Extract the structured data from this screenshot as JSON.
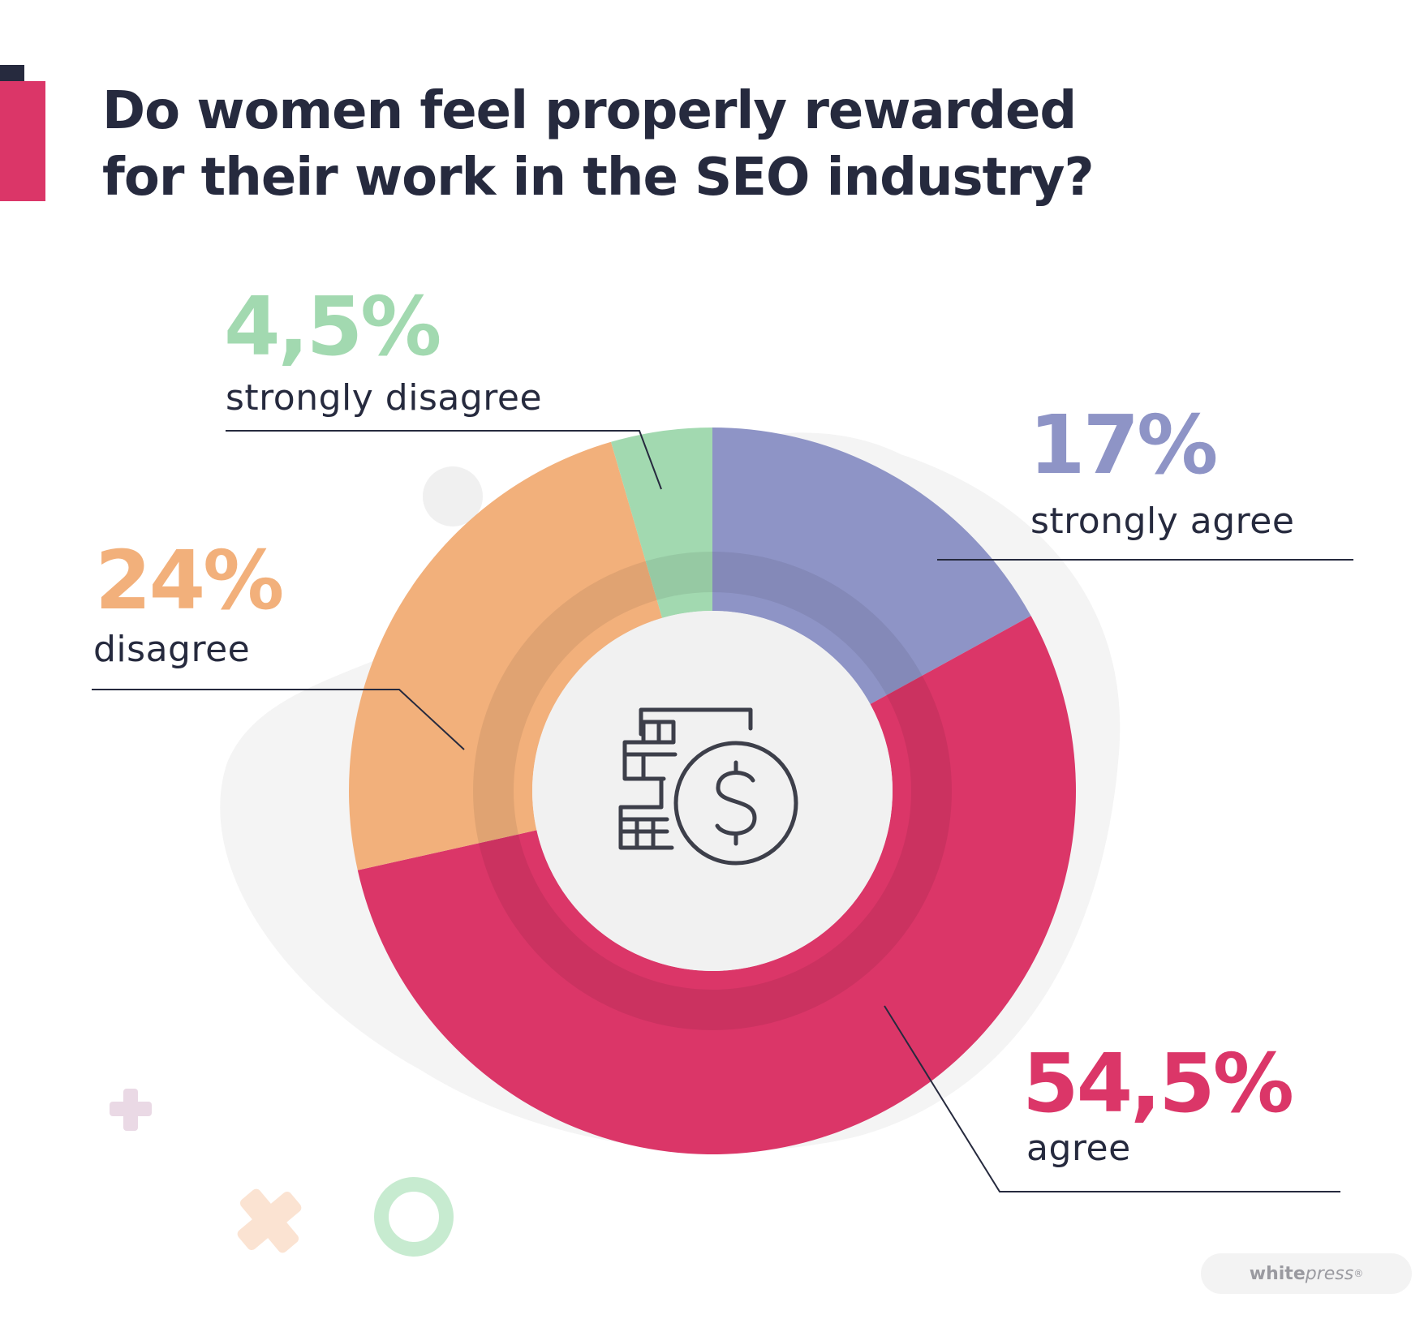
{
  "title_lines": [
    "Do women feel properly rewarded",
    "for their work in the SEO industry?"
  ],
  "colors": {
    "strongly_agree": "#8e94c6",
    "agree": "#db3668",
    "disagree": "#f2b07b",
    "strongly_disagree": "#a2d9b0",
    "title": "#262a3e",
    "accent_dark": "#262a3e",
    "accent": "#db3668"
  },
  "chart_data": {
    "type": "pie",
    "variant": "donut",
    "title": "Do women feel properly rewarded for their work in the SEO industry?",
    "slices": [
      {
        "key": "strongly_agree",
        "label": "strongly agree",
        "value": 17,
        "value_label": "17%"
      },
      {
        "key": "agree",
        "label": "agree",
        "value": 54.5,
        "value_label": "54,5%"
      },
      {
        "key": "disagree",
        "label": "disagree",
        "value": 24,
        "value_label": "24%"
      },
      {
        "key": "strongly_disagree",
        "label": "strongly disagree",
        "value": 4.5,
        "value_label": "4,5%"
      }
    ],
    "center_icon": "coins-dollar-icon"
  },
  "logo": {
    "bold": "white",
    "italic": "press",
    "mark": "®"
  }
}
